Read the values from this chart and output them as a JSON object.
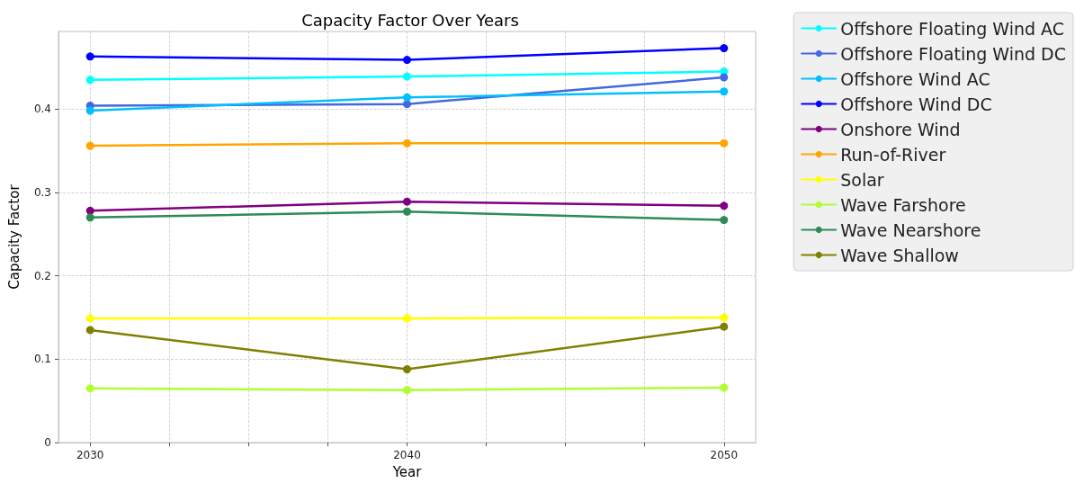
{
  "chart_data": {
    "type": "line",
    "title": "Capacity Factor Over Years",
    "xlabel": "Year",
    "ylabel": "Capacity Factor",
    "x": [
      2030,
      2040,
      2050
    ],
    "xlim": [
      2029,
      2051
    ],
    "xticks": [
      2030,
      {
        "value": 2032.5,
        "label": null
      },
      {
        "value": 2035,
        "label": null
      },
      {
        "value": 2037.5,
        "label": null
      },
      2040,
      {
        "value": 2042.5,
        "label": null
      },
      {
        "value": 2045,
        "label": null
      },
      {
        "value": 2047.5,
        "label": null
      },
      2050
    ],
    "ylim": [
      0,
      0.493
    ],
    "yticks": [
      0.0,
      0.1,
      0.2,
      0.3,
      0.4
    ],
    "grid": true,
    "legend": "right",
    "marker": "circle",
    "line_style": "solid",
    "series": [
      {
        "name": "Offshore Floating Wind AC",
        "color": "#00ffff",
        "values": [
          0.435,
          0.439,
          0.445
        ]
      },
      {
        "name": "Offshore Floating Wind DC",
        "color": "#4169e1",
        "values": [
          0.404,
          0.406,
          0.438
        ]
      },
      {
        "name": "Offshore Wind AC",
        "color": "#00bfff",
        "values": [
          0.398,
          0.414,
          0.421
        ]
      },
      {
        "name": "Offshore Wind DC",
        "color": "#0000ff",
        "values": [
          0.463,
          0.459,
          0.473
        ]
      },
      {
        "name": "Onshore Wind",
        "color": "#800080",
        "values": [
          0.278,
          0.289,
          0.284
        ]
      },
      {
        "name": "Run-of-River",
        "color": "#ffa500",
        "values": [
          0.356,
          0.359,
          0.359
        ]
      },
      {
        "name": "Solar",
        "color": "#ffff00",
        "values": [
          0.149,
          0.149,
          0.15
        ]
      },
      {
        "name": "Wave Farshore",
        "color": "#adff2f",
        "values": [
          0.065,
          0.063,
          0.066
        ]
      },
      {
        "name": "Wave Nearshore",
        "color": "#2e8b57",
        "values": [
          0.27,
          0.277,
          0.267
        ]
      },
      {
        "name": "Wave Shallow",
        "color": "#808000",
        "values": [
          0.135,
          0.088,
          0.139
        ]
      }
    ]
  }
}
